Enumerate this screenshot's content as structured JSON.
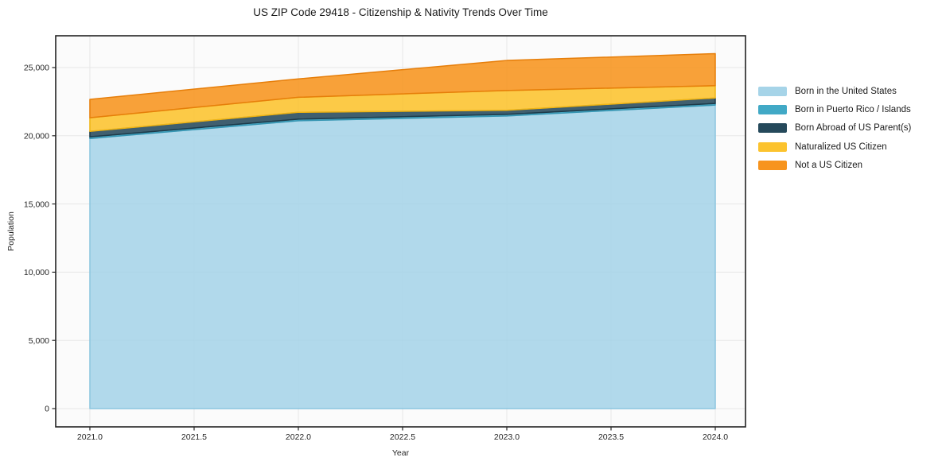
{
  "figure_title": "US ZIP Code 29418 - Citizenship & Nativity Trends Over Time",
  "chart_data": {
    "type": "area",
    "stacked": true,
    "title": "US ZIP Code 29418 - Citizenship & Nativity Trends Over Time",
    "xlabel": "Year",
    "ylabel": "Population",
    "x": [
      2021,
      2022,
      2023,
      2024
    ],
    "series": [
      {
        "id": "born-us",
        "name": "Born in the United States",
        "values": [
          19800,
          21100,
          21450,
          22250
        ],
        "color": "#A6D4E8",
        "edge": "#8CC6DF"
      },
      {
        "id": "born-pr-islands",
        "name": "Born in Puerto Rico / Islands",
        "values": [
          120,
          120,
          120,
          120
        ],
        "color": "#41A9C6",
        "edge": "#3595B2"
      },
      {
        "id": "born-abroad",
        "name": "Born Abroad of US Parent(s)",
        "values": [
          400,
          500,
          300,
          400
        ],
        "color": "#25495B",
        "edge": "#1D3A49"
      },
      {
        "id": "naturalized",
        "name": "Naturalized US Citizen",
        "values": [
          1000,
          1100,
          1450,
          900
        ],
        "color": "#FCC32E",
        "edge": "#EFB414"
      },
      {
        "id": "not-citizen",
        "name": "Not a US Citizen",
        "values": [
          1350,
          1350,
          2200,
          2350
        ],
        "color": "#F7941E",
        "edge": "#E67E0A"
      }
    ],
    "totals": [
      22670,
      24170,
      25520,
      26020
    ],
    "xticks": {
      "values": [
        2021.0,
        2021.5,
        2022.0,
        2022.5,
        2023.0,
        2023.5,
        2024.0
      ],
      "labels": [
        "2021.0",
        "2021.5",
        "2022.0",
        "2022.5",
        "2023.0",
        "2023.5",
        "2024.0"
      ]
    },
    "yticks": {
      "values": [
        0,
        5000,
        10000,
        15000,
        20000,
        25000
      ],
      "labels": [
        "0",
        "5,000",
        "10,000",
        "15,000",
        "20,000",
        "25,000"
      ]
    },
    "xlim": [
      2020.836,
      2024.145
    ],
    "ylim": [
      -1340,
      27330
    ],
    "grid": true,
    "fill_opacity": 0.88,
    "legend": {
      "position": "right-of-plot",
      "frame": false
    },
    "colors": {
      "grid": "#e7e7e7",
      "plot_background": "#fbfbfb",
      "spine": "#222222",
      "tick": "#262626",
      "text": "#1a1a1a"
    }
  }
}
